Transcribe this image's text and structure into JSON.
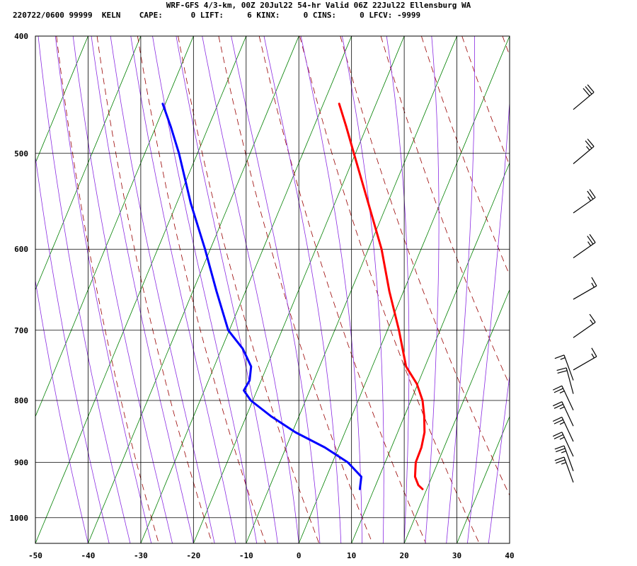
{
  "header": {
    "title": "WRF-GFS 4/3-km, 00Z 20Jul22 54-hr Valid 06Z 22Jul22 Ellensburg WA",
    "stats_line": "220722/0600 99999  KELN    CAPE:      0 LIFT:     6 KINX:     0 CINS:     0 LFCV: -9999"
  },
  "chart_data": {
    "type": "line",
    "title": "WRF-GFS 4/3-km, 00Z 20Jul22 54-hr Valid 06Z 22Jul22 Ellensburg WA",
    "xlabel": "",
    "ylabel": "",
    "xlim": [
      -50,
      40
    ],
    "ylim": [
      1050,
      400
    ],
    "y_scale": "log-pressure (skew-T)",
    "grid": true,
    "x_ticks": [
      -50,
      -40,
      -30,
      -20,
      -10,
      0,
      10,
      20,
      30,
      40
    ],
    "y_ticks": [
      400,
      500,
      600,
      700,
      800,
      900,
      1000
    ],
    "colors": {
      "temperature": "#ff0000",
      "dewpoint": "#0000ff",
      "isotherms": "#008000",
      "dry_adiabats": "#990000",
      "moist_adiabats": "#8a2be2",
      "grid": "#000000"
    },
    "series": [
      {
        "key": "temperature",
        "points": [
          {
            "p": 947,
            "t": 19.2
          },
          {
            "p": 940,
            "t": 18.1
          },
          {
            "p": 925,
            "t": 16.8
          },
          {
            "p": 900,
            "t": 15.8
          },
          {
            "p": 875,
            "t": 15.7
          },
          {
            "p": 850,
            "t": 15.1
          },
          {
            "p": 825,
            "t": 13.8
          },
          {
            "p": 800,
            "t": 12.2
          },
          {
            "p": 775,
            "t": 9.8
          },
          {
            "p": 750,
            "t": 6.4
          },
          {
            "p": 700,
            "t": 2.2
          },
          {
            "p": 650,
            "t": -2.7
          },
          {
            "p": 600,
            "t": -7.5
          },
          {
            "p": 550,
            "t": -13.6
          },
          {
            "p": 500,
            "t": -20.3
          },
          {
            "p": 475,
            "t": -23.9
          },
          {
            "p": 455,
            "t": -27.0
          }
        ]
      },
      {
        "key": "dewpoint",
        "points": [
          {
            "p": 947,
            "t": 7.3
          },
          {
            "p": 925,
            "t": 6.6
          },
          {
            "p": 900,
            "t": 2.9
          },
          {
            "p": 875,
            "t": -2.6
          },
          {
            "p": 850,
            "t": -9.4
          },
          {
            "p": 825,
            "t": -15.2
          },
          {
            "p": 800,
            "t": -20.4
          },
          {
            "p": 785,
            "t": -22.5
          },
          {
            "p": 770,
            "t": -22.2
          },
          {
            "p": 750,
            "t": -23.0
          },
          {
            "p": 725,
            "t": -26.0
          },
          {
            "p": 700,
            "t": -30.2
          },
          {
            "p": 650,
            "t": -35.5
          },
          {
            "p": 600,
            "t": -41.0
          },
          {
            "p": 550,
            "t": -47.3
          },
          {
            "p": 500,
            "t": -53.5
          },
          {
            "p": 475,
            "t": -57.2
          },
          {
            "p": 455,
            "t": -60.5
          }
        ]
      }
    ],
    "wind_barbs": [
      {
        "p": 460,
        "dir": 230,
        "speed": 30
      },
      {
        "p": 510,
        "dir": 230,
        "speed": 25
      },
      {
        "p": 560,
        "dir": 235,
        "speed": 25
      },
      {
        "p": 610,
        "dir": 235,
        "speed": 25
      },
      {
        "p": 660,
        "dir": 240,
        "speed": 15
      },
      {
        "p": 710,
        "dir": 235,
        "speed": 15
      },
      {
        "p": 755,
        "dir": 240,
        "speed": 15
      },
      {
        "p": 770,
        "dir": 160,
        "speed": 15
      },
      {
        "p": 790,
        "dir": 165,
        "speed": 20
      },
      {
        "p": 815,
        "dir": 155,
        "speed": 25
      },
      {
        "p": 840,
        "dir": 155,
        "speed": 25
      },
      {
        "p": 865,
        "dir": 155,
        "speed": 25
      },
      {
        "p": 890,
        "dir": 155,
        "speed": 25
      },
      {
        "p": 915,
        "dir": 160,
        "speed": 25
      },
      {
        "p": 935,
        "dir": 160,
        "speed": 25
      }
    ]
  }
}
